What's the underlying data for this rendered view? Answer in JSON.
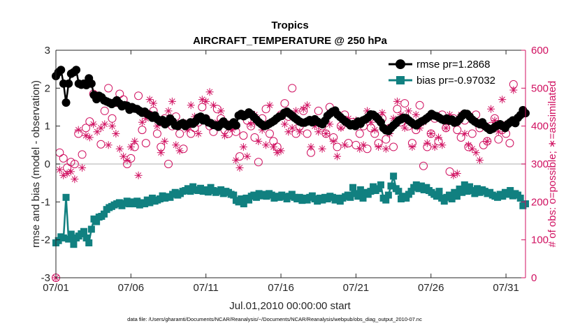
{
  "chart_data": {
    "type": "line",
    "title": "Tropics",
    "subtitle": "AIRCRAFT_TEMPERATURE @ 250 hPa",
    "xlabel": "Jul.01,2010 00:00:00 start",
    "ylabel": "rmse and bias (model - observation)",
    "y2label": "# of obs: o=possible; ∗=assimilated",
    "footnote": "data file: /Users/gharamti/Documents/NCAR/Reanalysis/~/Documents/NCAR/Reanalysis/webpub/obs_diag_output_2010-07.nc",
    "x_ticks": [
      "07/01",
      "07/06",
      "07/11",
      "07/16",
      "07/21",
      "07/26",
      "07/31"
    ],
    "x_tick_days": [
      1,
      6,
      11,
      16,
      21,
      26,
      31
    ],
    "xlim_days": [
      1,
      32.3
    ],
    "ylim": [
      -3,
      3
    ],
    "y_ticks": [
      -3,
      -2,
      -1,
      0,
      1,
      2,
      3
    ],
    "y2lim": [
      0,
      600
    ],
    "y2_ticks": [
      0,
      100,
      200,
      300,
      400,
      500,
      600
    ],
    "zero_line": 0,
    "legend_position": "top-right",
    "colors": {
      "rmse": "#000000",
      "bias": "#118080",
      "obs": "#d01060",
      "axis": "#262626",
      "zero_line": "#c8c8c8"
    },
    "series": [
      {
        "name": "rmse pr=1.2868",
        "values": [
          2.32,
          2.42,
          2.48,
          2.12,
          1.62,
          2.12,
          2.38,
          2.42,
          2.48,
          2.12,
          2.09,
          2.12,
          2.08,
          2.26,
          2.12,
          1.82,
          1.71,
          1.8,
          1.76,
          1.68,
          1.65,
          1.62,
          1.58,
          1.62,
          1.68,
          1.6,
          1.52,
          1.55,
          1.54,
          1.43,
          1.5,
          1.46,
          1.45,
          1.4,
          1.35,
          1.38,
          1.32,
          1.28,
          1.22,
          1.28,
          1.18,
          1.12,
          1.16,
          1.05,
          1.1,
          1.2,
          1.12,
          1.02,
          1.0,
          1.05,
          1.08,
          1.0,
          1.05,
          1.1,
          1.06,
          1.12,
          1.22,
          1.25,
          1.15,
          1.2,
          1.1,
          1.08,
          1.03,
          1.02,
          0.98,
          1.05,
          1.12,
          1.05,
          1.0,
          1.04,
          1.1,
          1.02,
          1.28,
          1.32,
          1.26,
          1.3,
          1.36,
          1.31,
          1.24,
          1.17,
          1.1,
          1.05,
          1.0,
          1.02,
          1.06,
          1.1,
          1.14,
          1.2,
          1.25,
          1.27,
          1.35,
          1.38,
          1.33,
          1.28,
          1.22,
          1.17,
          1.12,
          1.09,
          1.09,
          1.12,
          1.16,
          1.1,
          1.18,
          1.12,
          1.08,
          1.05,
          1.14,
          1.27,
          1.33,
          1.38,
          1.41,
          1.3,
          1.24,
          1.18,
          1.12,
          1.08,
          1.02,
          1.05,
          1.0,
          1.12,
          1.06,
          1.15,
          1.18,
          1.23,
          1.31,
          1.3,
          1.25,
          1.18,
          1.1,
          0.95,
          0.89,
          0.87,
          0.95,
          1.02,
          1.08,
          1.15,
          1.18,
          1.22,
          1.21,
          1.15,
          1.1,
          1.05,
          1.02,
          1.08,
          1.12,
          1.15,
          1.2,
          1.25,
          1.32,
          1.28,
          1.26,
          1.22,
          1.18,
          1.15,
          1.2,
          1.14,
          1.17,
          1.09,
          1.11,
          1.18,
          1.27,
          1.33,
          1.32,
          1.25,
          1.17,
          1.12,
          1.08,
          1.05,
          1.1,
          1.0,
          0.95,
          0.9,
          0.93,
          0.98,
          1.02,
          1.05,
          1.0,
          0.95,
          1.05,
          1.1,
          1.15,
          1.08,
          1.22,
          1.29,
          1.42,
          1.34
        ]
      },
      {
        "name": "bias pr=-0.97032",
        "values": [
          -2.08,
          -2.02,
          -1.92,
          -1.95,
          -0.88,
          -1.98,
          -1.85,
          -2.12,
          -1.95,
          -1.9,
          -1.84,
          -1.78,
          -1.95,
          -2.08,
          -1.72,
          -1.45,
          -1.52,
          -1.4,
          -1.38,
          -1.32,
          -1.2,
          -1.15,
          -1.12,
          -1.08,
          -1.05,
          -1.02,
          -1.1,
          -1.04,
          -0.98,
          -1.05,
          -1.0,
          -1.05,
          -0.98,
          -1.08,
          -1.02,
          -1.05,
          -0.95,
          -1.02,
          -0.9,
          -0.98,
          -0.95,
          -0.92,
          -0.84,
          -0.9,
          -0.86,
          -0.88,
          -0.8,
          -0.75,
          -0.82,
          -0.78,
          -0.72,
          -0.7,
          -0.65,
          -0.72,
          -0.6,
          -0.68,
          -0.7,
          -0.64,
          -0.72,
          -0.68,
          -0.74,
          -0.62,
          -0.7,
          -0.75,
          -0.72,
          -0.68,
          -0.78,
          -0.72,
          -0.75,
          -0.8,
          -0.82,
          -0.96,
          -1.0,
          -0.92,
          -1.05,
          -0.9,
          -0.95,
          -0.85,
          -0.82,
          -0.88,
          -0.78,
          -0.84,
          -0.8,
          -0.85,
          -0.78,
          -0.82,
          -0.9,
          -0.85,
          -0.88,
          -0.82,
          -0.86,
          -0.92,
          -0.85,
          -0.8,
          -0.88,
          -0.92,
          -0.88,
          -0.96,
          -0.9,
          -0.95,
          -0.88,
          -0.84,
          -0.92,
          -0.98,
          -0.9,
          -0.95,
          -0.88,
          -0.92,
          -0.85,
          -0.88,
          -0.95,
          -0.9,
          -0.98,
          -0.9,
          -0.86,
          -0.82,
          -0.88,
          -0.62,
          -0.78,
          -0.85,
          -0.68,
          -0.9,
          -0.75,
          -0.8,
          -0.72,
          -0.6,
          -0.7,
          -0.65,
          -0.55,
          -0.9,
          -0.95,
          -0.82,
          -0.58,
          -0.32,
          -0.65,
          -0.72,
          -0.92,
          -0.85,
          -0.9,
          -0.8,
          -0.72,
          -0.62,
          -0.55,
          -0.65,
          -0.58,
          -0.68,
          -0.62,
          -0.7,
          -0.75,
          -0.8,
          -0.85,
          -0.72,
          -0.9,
          -0.98,
          -0.88,
          -0.82,
          -0.92,
          -0.75,
          -0.85,
          -0.66,
          -0.75,
          -0.55,
          -0.72,
          -0.6,
          -0.7,
          -0.78,
          -0.65,
          -0.75,
          -0.68,
          -0.72,
          -0.78,
          -0.75,
          -0.82,
          -0.85,
          -0.88,
          -0.8,
          -0.85,
          -0.75,
          -0.8,
          -0.7,
          -0.84,
          -0.78,
          -0.82,
          -0.9,
          -1.1,
          -1.05
        ]
      }
    ],
    "obs_points": [
      {
        "day": 1.0,
        "possible": 0,
        "assimilated": 0
      },
      {
        "day": 1.25,
        "possible": 330,
        "assimilated": 285
      },
      {
        "day": 1.5,
        "possible": 315,
        "assimilated": 270
      },
      {
        "day": 1.75,
        "possible": 290,
        "assimilated": 275
      },
      {
        "day": 2.0,
        "possible": 305,
        "assimilated": 280
      },
      {
        "day": 2.25,
        "possible": 300,
        "assimilated": 260
      },
      {
        "day": 2.5,
        "possible": 380,
        "assimilated": 390
      },
      {
        "day": 2.75,
        "possible": 325,
        "assimilated": 290
      },
      {
        "day": 3.0,
        "possible": 395,
        "assimilated": 375
      },
      {
        "day": 3.25,
        "possible": 412,
        "assimilated": 370
      },
      {
        "day": 3.5,
        "possible": 485,
        "assimilated": 405
      },
      {
        "day": 3.75,
        "possible": 480,
        "assimilated": 385
      },
      {
        "day": 4.0,
        "possible": 352,
        "assimilated": 395
      },
      {
        "day": 4.25,
        "possible": 440,
        "assimilated": 405
      },
      {
        "day": 4.5,
        "possible": 500,
        "assimilated": 350
      },
      {
        "day": 4.75,
        "possible": 420,
        "assimilated": 400
      },
      {
        "day": 5.0,
        "possible": 462,
        "assimilated": 380
      },
      {
        "day": 5.25,
        "possible": 485,
        "assimilated": 340
      },
      {
        "day": 5.5,
        "possible": 470,
        "assimilated": 320
      },
      {
        "day": 5.75,
        "possible": 300,
        "assimilated": 310
      },
      {
        "day": 6.0,
        "possible": 315,
        "assimilated": 345
      },
      {
        "day": 6.25,
        "possible": 345,
        "assimilated": 360
      },
      {
        "day": 6.5,
        "possible": 480,
        "assimilated": 270
      },
      {
        "day": 6.75,
        "possible": 390,
        "assimilated": 410
      },
      {
        "day": 7.0,
        "possible": 355,
        "assimilated": 420
      },
      {
        "day": 7.25,
        "possible": 430,
        "assimilated": 470
      },
      {
        "day": 7.5,
        "possible": 440,
        "assimilated": 460
      },
      {
        "day": 7.75,
        "possible": 380,
        "assimilated": 400
      },
      {
        "day": 8.0,
        "possible": 345,
        "assimilated": 330
      },
      {
        "day": 8.25,
        "possible": 420,
        "assimilated": 360
      },
      {
        "day": 8.5,
        "possible": 300,
        "assimilated": 440
      },
      {
        "day": 8.75,
        "possible": 400,
        "assimilated": 465
      },
      {
        "day": 9.0,
        "possible": 425,
        "assimilated": 350
      },
      {
        "day": 9.25,
        "possible": 380,
        "assimilated": 335
      },
      {
        "day": 9.5,
        "possible": 340,
        "assimilated": 410
      },
      {
        "day": 9.75,
        "possible": 400,
        "assimilated": 390
      },
      {
        "day": 10.0,
        "possible": 380,
        "assimilated": 455
      },
      {
        "day": 10.25,
        "possible": 395,
        "assimilated": 425
      },
      {
        "day": 10.5,
        "possible": 410,
        "assimilated": 380
      },
      {
        "day": 10.75,
        "possible": 450,
        "assimilated": 470
      },
      {
        "day": 11.0,
        "possible": 420,
        "assimilated": 465
      },
      {
        "day": 11.25,
        "possible": 400,
        "assimilated": 490
      },
      {
        "day": 11.5,
        "possible": 385,
        "assimilated": 455
      },
      {
        "day": 11.75,
        "possible": 445,
        "assimilated": 410
      },
      {
        "day": 12.0,
        "possible": 420,
        "assimilated": 440
      },
      {
        "day": 12.25,
        "possible": 390,
        "assimilated": 375
      },
      {
        "day": 12.5,
        "possible": 380,
        "assimilated": 405
      },
      {
        "day": 12.75,
        "possible": 400,
        "assimilated": 390
      },
      {
        "day": 13.0,
        "possible": 385,
        "assimilated": 310
      },
      {
        "day": 13.25,
        "possible": 320,
        "assimilated": 290
      },
      {
        "day": 13.5,
        "possible": 375,
        "assimilated": 345
      },
      {
        "day": 13.75,
        "possible": 415,
        "assimilated": 320
      },
      {
        "day": 14.0,
        "possible": 400,
        "assimilated": 405
      },
      {
        "day": 14.25,
        "possible": 370,
        "assimilated": 430
      },
      {
        "day": 14.5,
        "possible": 305,
        "assimilated": 360
      },
      {
        "day": 14.75,
        "possible": 420,
        "assimilated": 390
      },
      {
        "day": 15.0,
        "possible": 445,
        "assimilated": 350
      },
      {
        "day": 15.25,
        "possible": 380,
        "assimilated": 455
      },
      {
        "day": 15.5,
        "possible": 360,
        "assimilated": 345
      },
      {
        "day": 15.75,
        "possible": 345,
        "assimilated": 330
      },
      {
        "day": 16.0,
        "possible": 430,
        "assimilated": 335
      },
      {
        "day": 16.25,
        "possible": 460,
        "assimilated": 405
      },
      {
        "day": 16.5,
        "possible": 425,
        "assimilated": 385
      },
      {
        "day": 16.75,
        "possible": 500,
        "assimilated": 395
      },
      {
        "day": 17.0,
        "possible": 380,
        "assimilated": 440
      },
      {
        "day": 17.25,
        "possible": 400,
        "assimilated": 385
      },
      {
        "day": 17.5,
        "possible": 440,
        "assimilated": 445
      },
      {
        "day": 17.75,
        "possible": 380,
        "assimilated": 455
      },
      {
        "day": 18.0,
        "possible": 330,
        "assimilated": 345
      },
      {
        "day": 18.25,
        "possible": 410,
        "assimilated": 400
      },
      {
        "day": 18.5,
        "possible": 440,
        "assimilated": 385
      },
      {
        "day": 18.75,
        "possible": 400,
        "assimilated": 340
      },
      {
        "day": 19.0,
        "possible": 380,
        "assimilated": 380
      },
      {
        "day": 19.25,
        "possible": 450,
        "assimilated": 405
      },
      {
        "day": 19.5,
        "possible": 370,
        "assimilated": 360
      },
      {
        "day": 19.75,
        "possible": 345,
        "assimilated": 320
      },
      {
        "day": 20.0,
        "possible": 400,
        "assimilated": 395
      },
      {
        "day": 20.25,
        "possible": 430,
        "assimilated": 350
      },
      {
        "day": 20.5,
        "possible": 355,
        "assimilated": 420
      },
      {
        "day": 20.75,
        "possible": 410,
        "assimilated": 405
      },
      {
        "day": 21.0,
        "possible": 350,
        "assimilated": 415
      },
      {
        "day": 21.25,
        "possible": 380,
        "assimilated": 340
      },
      {
        "day": 21.5,
        "possible": 400,
        "assimilated": 350
      },
      {
        "day": 21.75,
        "possible": 340,
        "assimilated": 440
      },
      {
        "day": 22.0,
        "possible": 395,
        "assimilated": 410
      },
      {
        "day": 22.25,
        "possible": 380,
        "assimilated": 390
      },
      {
        "day": 22.5,
        "possible": 355,
        "assimilated": 345
      },
      {
        "day": 22.75,
        "possible": 420,
        "assimilated": 435
      },
      {
        "day": 23.0,
        "possible": 365,
        "assimilated": 340
      },
      {
        "day": 23.25,
        "possible": 395,
        "assimilated": 380
      },
      {
        "day": 23.5,
        "possible": 345,
        "assimilated": 420
      },
      {
        "day": 23.75,
        "possible": 445,
        "assimilated": 465
      },
      {
        "day": 24.0,
        "possible": 410,
        "assimilated": 430
      },
      {
        "day": 24.25,
        "possible": 460,
        "assimilated": 395
      },
      {
        "day": 24.5,
        "possible": 400,
        "assimilated": 440
      },
      {
        "day": 24.75,
        "possible": 355,
        "assimilated": 345
      },
      {
        "day": 25.0,
        "possible": 390,
        "assimilated": 430
      },
      {
        "day": 25.25,
        "possible": 455,
        "assimilated": 395
      },
      {
        "day": 25.5,
        "possible": 295,
        "assimilated": 410
      },
      {
        "day": 25.75,
        "possible": 345,
        "assimilated": 355
      },
      {
        "day": 26.0,
        "possible": 380,
        "assimilated": 380
      },
      {
        "day": 26.25,
        "possible": 420,
        "assimilated": 345
      },
      {
        "day": 26.5,
        "possible": 360,
        "assimilated": 370
      },
      {
        "day": 26.75,
        "possible": 430,
        "assimilated": 350
      },
      {
        "day": 27.0,
        "possible": 395,
        "assimilated": 395
      },
      {
        "day": 27.25,
        "possible": 280,
        "assimilated": 430
      },
      {
        "day": 27.5,
        "possible": 420,
        "assimilated": 270
      },
      {
        "day": 27.75,
        "possible": 390,
        "assimilated": 275
      },
      {
        "day": 28.0,
        "possible": 370,
        "assimilated": 430
      },
      {
        "day": 28.25,
        "possible": 415,
        "assimilated": 380
      },
      {
        "day": 28.5,
        "possible": 345,
        "assimilated": 350
      },
      {
        "day": 28.75,
        "possible": 380,
        "assimilated": 340
      },
      {
        "day": 29.0,
        "possible": 430,
        "assimilated": 330
      },
      {
        "day": 29.25,
        "possible": 395,
        "assimilated": 310
      },
      {
        "day": 29.5,
        "possible": 350,
        "assimilated": 400
      },
      {
        "day": 29.75,
        "possible": 360,
        "assimilated": 360
      },
      {
        "day": 30.0,
        "possible": 400,
        "assimilated": 445
      },
      {
        "day": 30.25,
        "possible": 420,
        "assimilated": 415
      },
      {
        "day": 30.5,
        "possible": 365,
        "assimilated": 385
      },
      {
        "day": 30.75,
        "possible": 390,
        "assimilated": 470
      },
      {
        "day": 31.0,
        "possible": 380,
        "assimilated": 405
      },
      {
        "day": 31.25,
        "possible": 355,
        "assimilated": 410
      },
      {
        "day": 31.5,
        "possible": 510,
        "assimilated": 495
      }
    ]
  }
}
